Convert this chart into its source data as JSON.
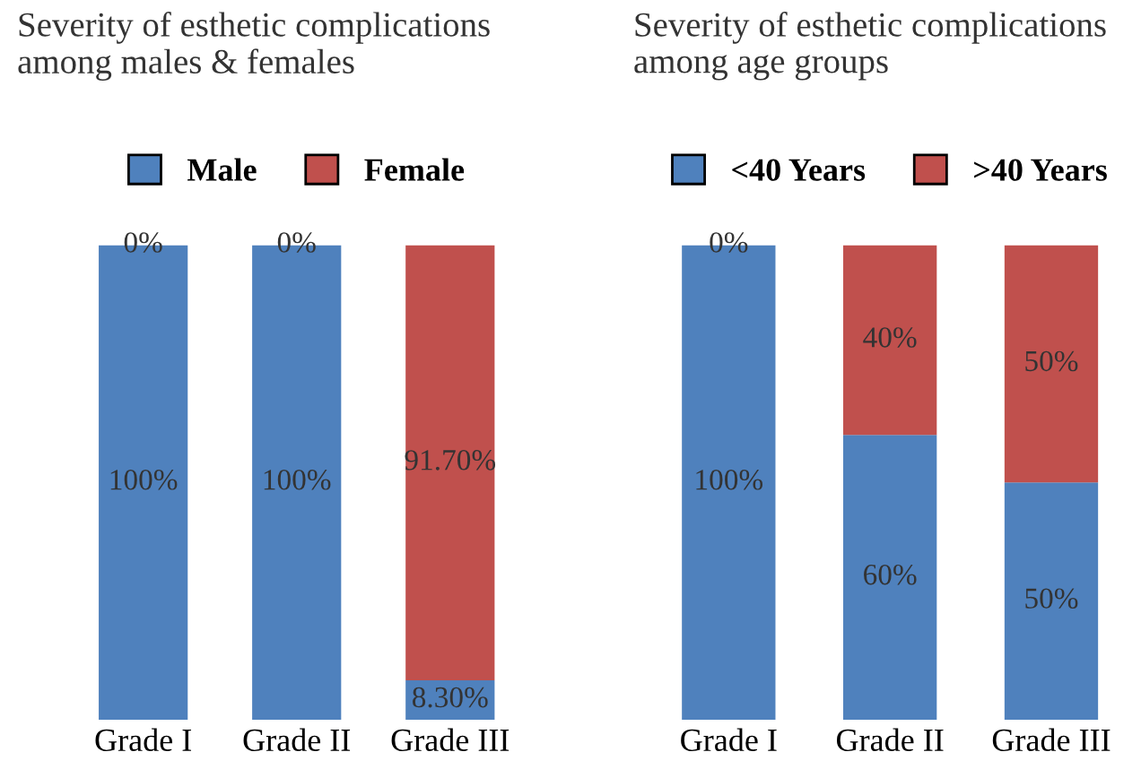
{
  "chart_data": [
    {
      "type": "bar",
      "title": "Severity of esthetic complications\namong males & females",
      "categories": [
        "Grade I",
        "Grade II",
        "Grade III"
      ],
      "stacked": true,
      "legend": "top",
      "series": [
        {
          "name": "Male",
          "color": "#4f81bd",
          "values": [
            100,
            100,
            8.3
          ],
          "value_labels": [
            "100%",
            "100%",
            "8.30%"
          ]
        },
        {
          "name": "Female",
          "color": "#c0504d",
          "values": [
            0,
            0,
            91.7
          ],
          "value_labels": [
            "0%",
            "0%",
            "91.70%"
          ]
        }
      ]
    },
    {
      "type": "bar",
      "title": "Severity of esthetic complications\namong age groups",
      "categories": [
        "Grade I",
        "Grade II",
        "Grade III"
      ],
      "stacked": true,
      "legend": "top",
      "series": [
        {
          "name": "<40 Years",
          "color": "#4f81bd",
          "values": [
            100,
            60,
            50
          ],
          "value_labels": [
            "100%",
            "60%",
            "50%"
          ]
        },
        {
          "name": ">40 Years",
          "color": "#c0504d",
          "values": [
            0,
            40,
            50
          ],
          "value_labels": [
            "0%",
            "40%",
            "50%"
          ]
        }
      ]
    }
  ]
}
